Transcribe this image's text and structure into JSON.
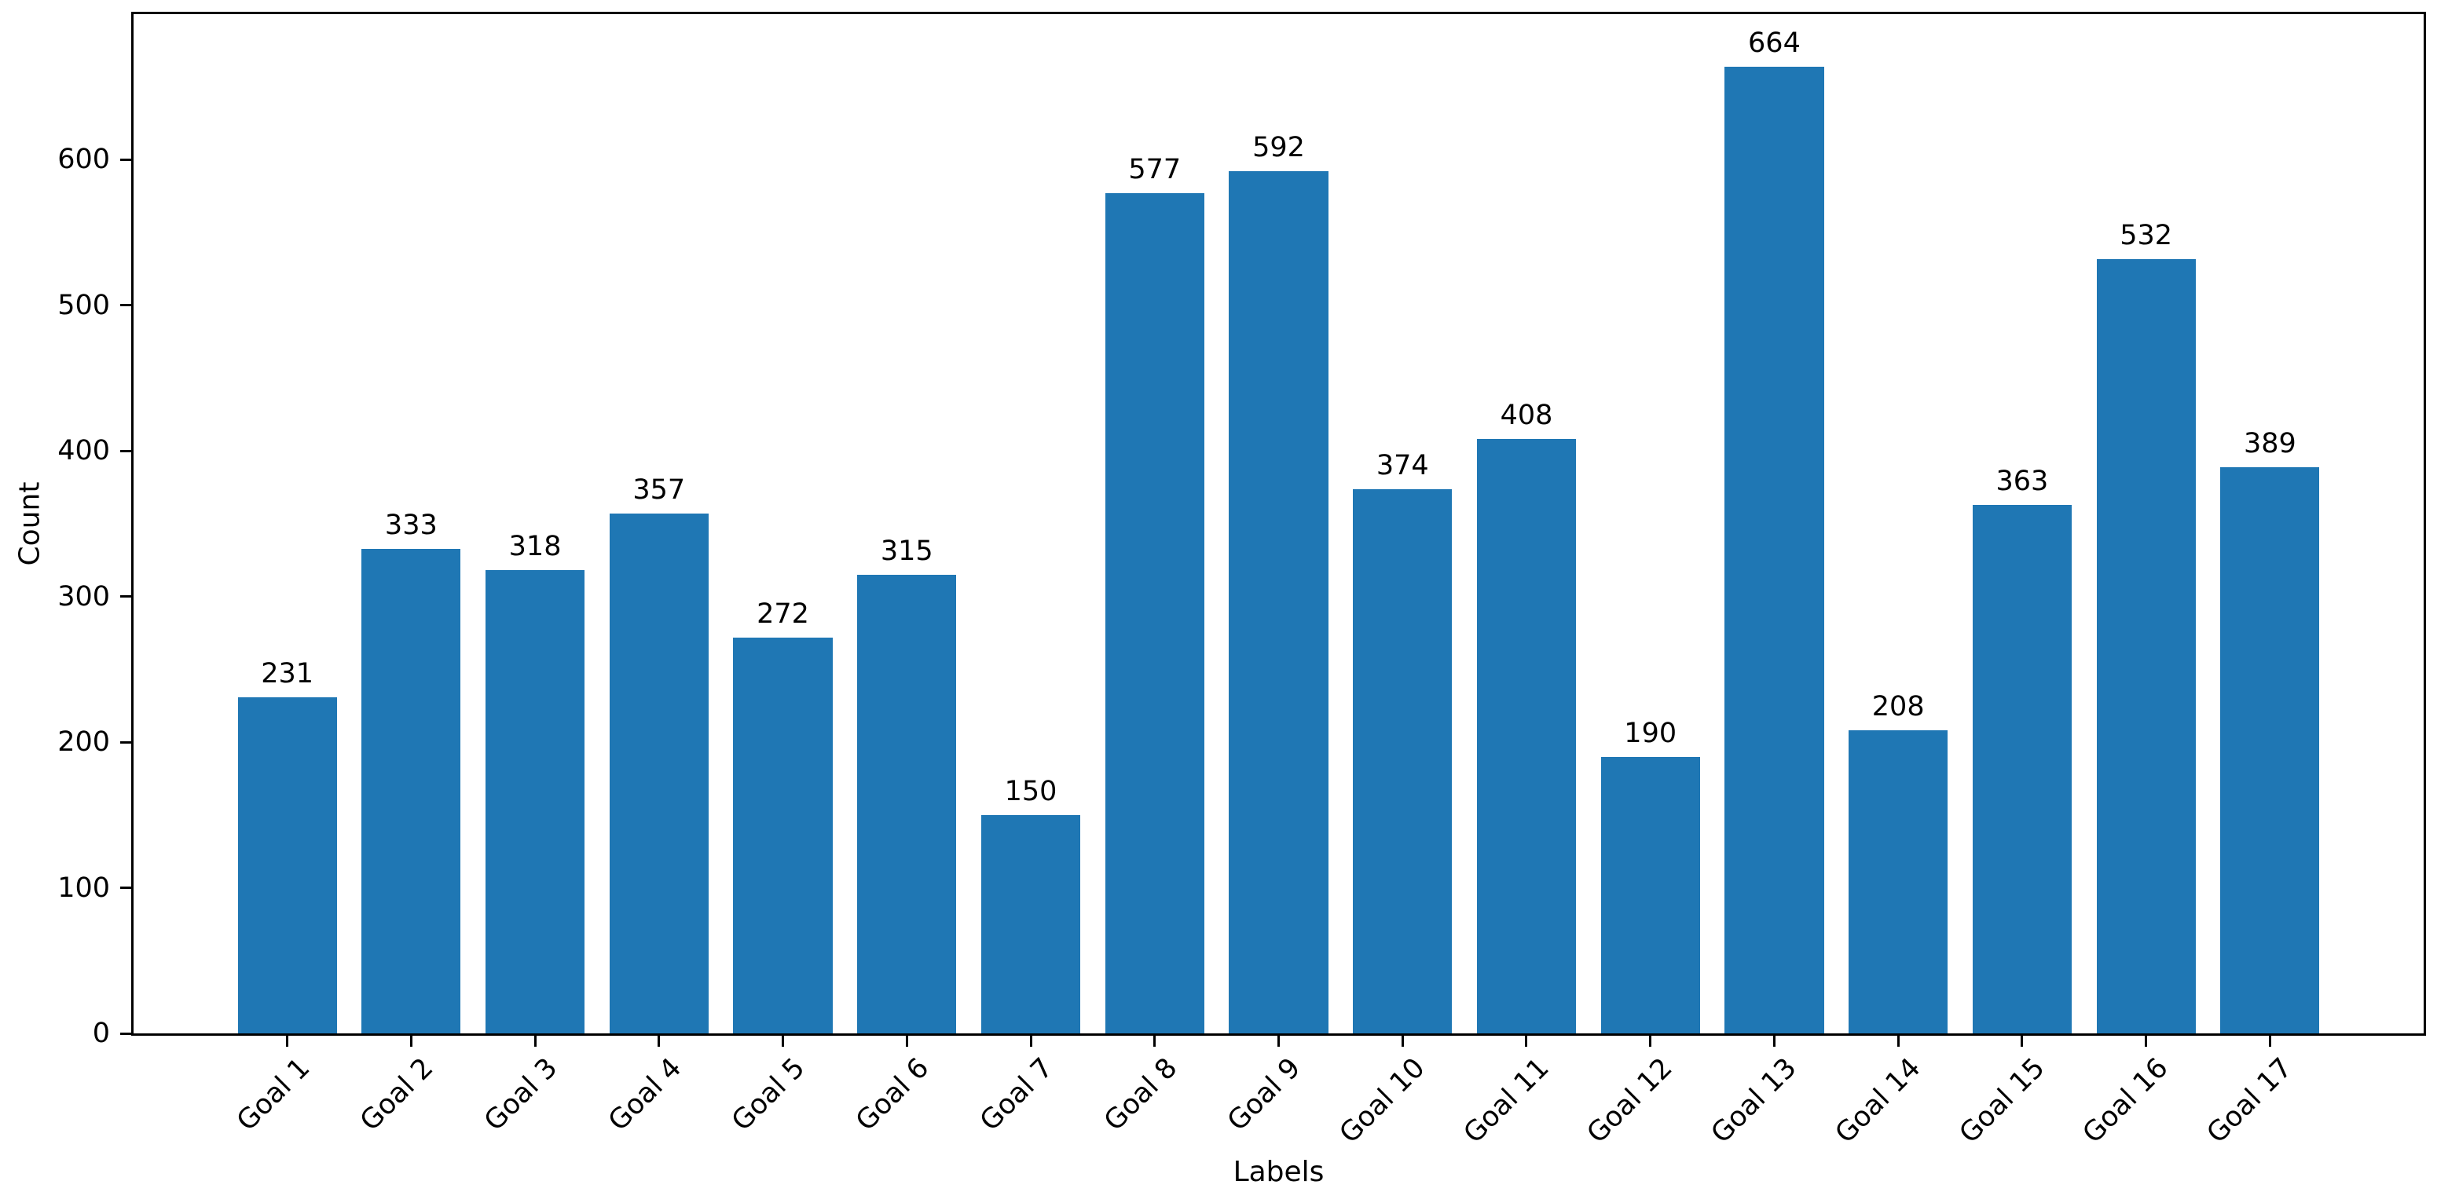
{
  "chart_data": {
    "type": "bar",
    "categories": [
      "Goal 1",
      "Goal 2",
      "Goal 3",
      "Goal 4",
      "Goal 5",
      "Goal 6",
      "Goal 7",
      "Goal 8",
      "Goal 9",
      "Goal 10",
      "Goal 11",
      "Goal 12",
      "Goal 13",
      "Goal 14",
      "Goal 15",
      "Goal 16",
      "Goal 17"
    ],
    "values": [
      231,
      333,
      318,
      357,
      272,
      315,
      150,
      577,
      592,
      374,
      408,
      190,
      664,
      208,
      363,
      532,
      389
    ],
    "xlabel": "Labels",
    "ylabel": "Count",
    "ylim": [
      0,
      700
    ],
    "yticks": [
      0,
      100,
      200,
      300,
      400,
      500,
      600
    ],
    "bar_color": "#1f77b4",
    "value_labels_shown": true,
    "x_tick_rotation": 45,
    "grid": false,
    "legend": "none"
  }
}
